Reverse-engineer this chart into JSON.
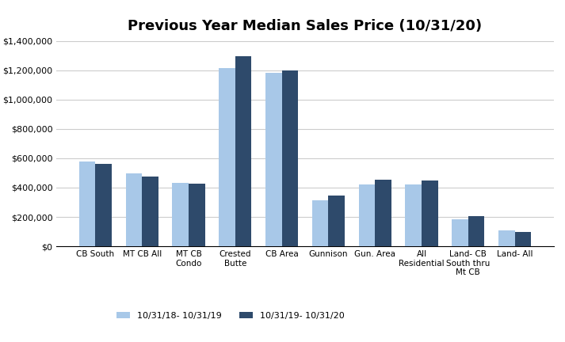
{
  "title": "Previous Year Median Sales Price (10/31/20)",
  "categories": [
    "CB South",
    "MT CB All",
    "MT CB\nCondo",
    "Crested\nButte",
    "CB Area",
    "Gunnison",
    "Gun. Area",
    "All\nResidential",
    "Land- CB\nSouth thru\nMt CB",
    "Land- All"
  ],
  "series1_label": "10/31/18- 10/31/19",
  "series2_label": "10/31/19- 10/31/20",
  "series1_values": [
    580000,
    495000,
    435000,
    1215000,
    1185000,
    315000,
    420000,
    420000,
    185000,
    107000
  ],
  "series2_values": [
    560000,
    475000,
    425000,
    1295000,
    1200000,
    348000,
    455000,
    450000,
    205000,
    95000
  ],
  "color1": "#a8c8e8",
  "color2": "#2e4a6b",
  "ylim": [
    0,
    1400000
  ],
  "ytick_step": 200000,
  "background_color": "#ffffff",
  "grid_color": "#cccccc"
}
